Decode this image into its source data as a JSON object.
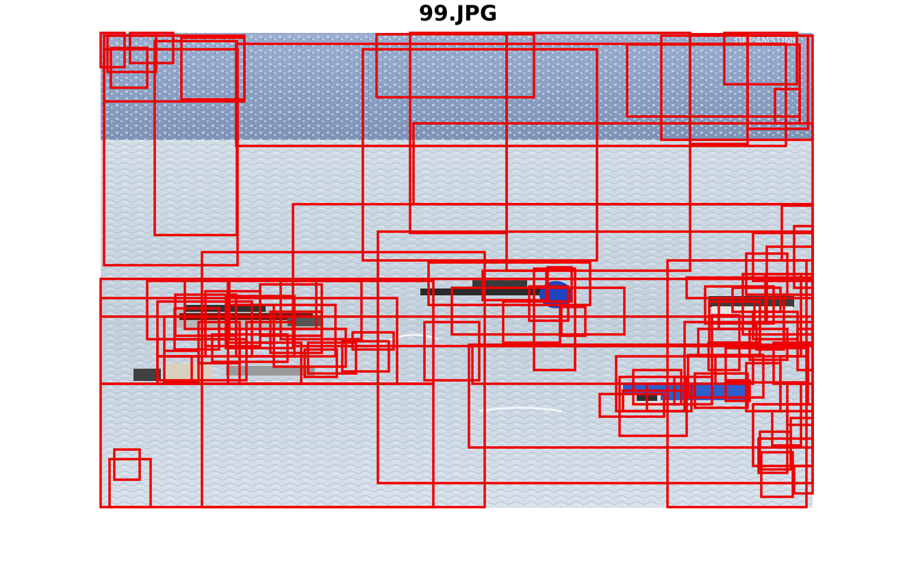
{
  "figure": {
    "title": "99.JPG",
    "watermark": "DREAMSTIME"
  },
  "colors": {
    "box_stroke": "#ee0000",
    "sky_hill": "#8fa6c8",
    "water": "#c9d6e2",
    "boat_red": "#b02020",
    "boat_blue": "#2a58c8"
  },
  "image_content": {
    "scene": "lake with boats and hillside town",
    "objects": [
      "hillside-town",
      "lake-water",
      "red-boat",
      "small-boat-left",
      "dark-boat-center",
      "blue-boat-right",
      "boat-far-right"
    ]
  },
  "detections_count": 112
}
